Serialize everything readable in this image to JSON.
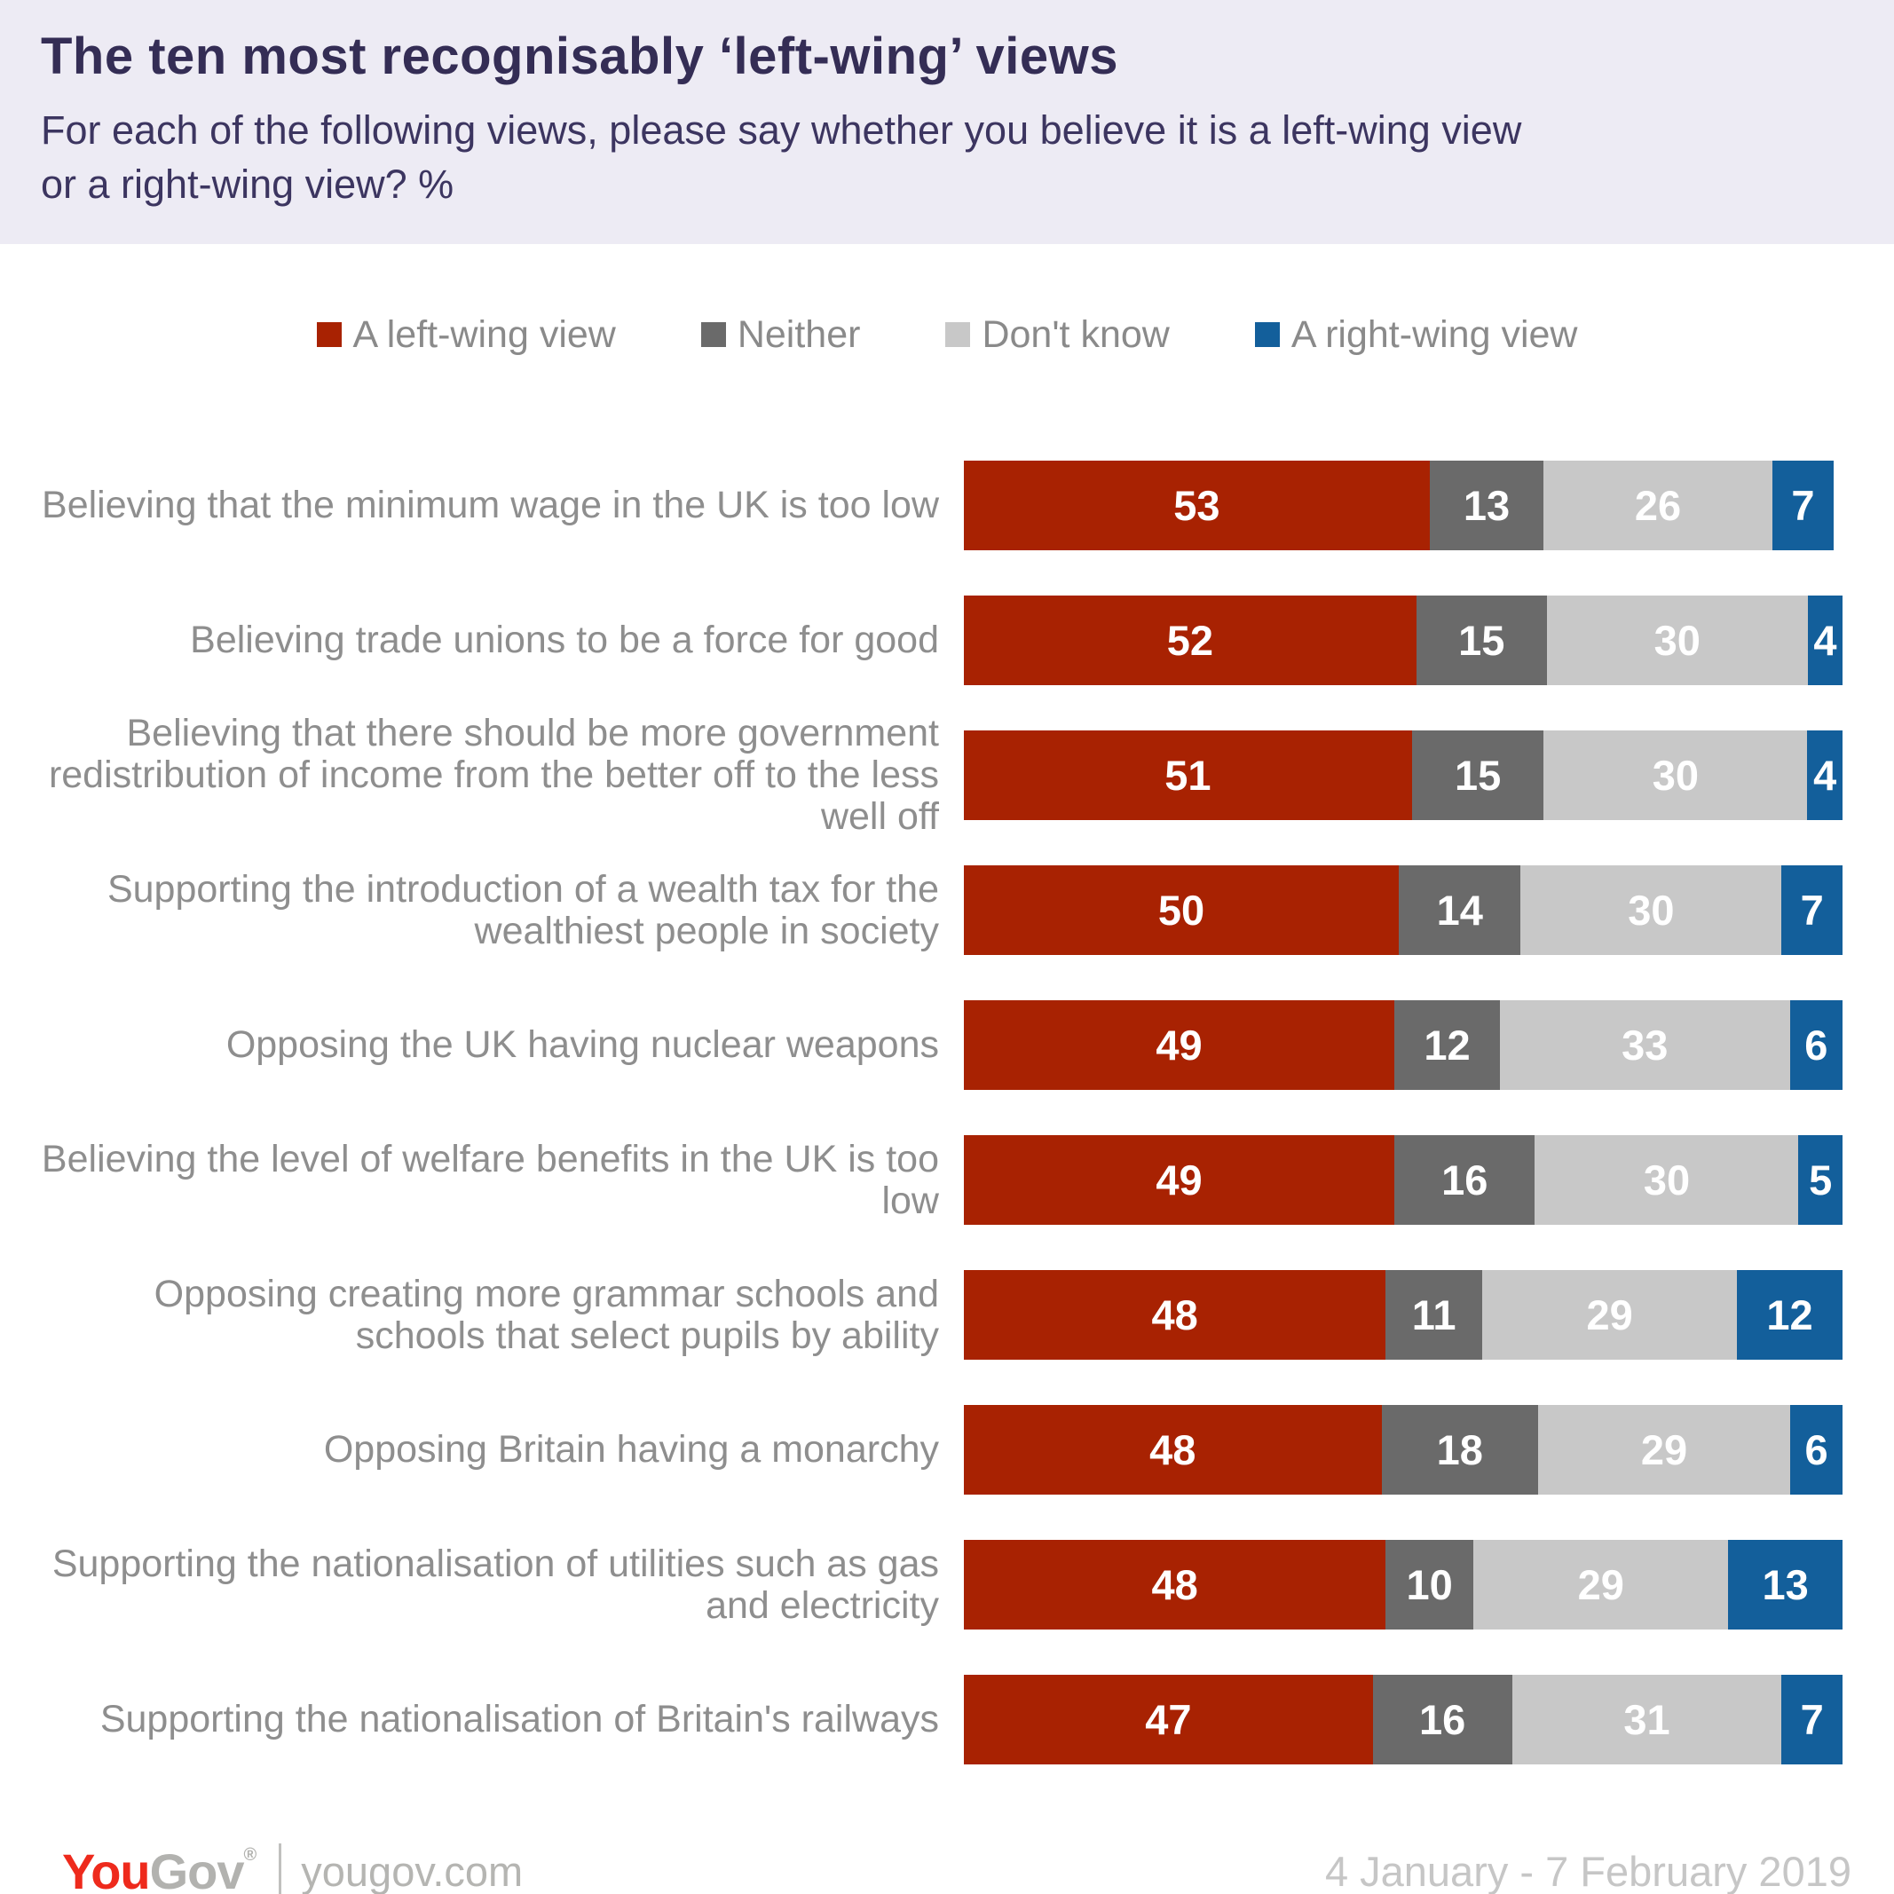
{
  "header": {
    "title": "The ten most recognisably ‘left-wing’ views",
    "subtitle_line1": "For each of the following views, please say whether you believe it is a left-wing view",
    "subtitle_line2": "or a right-wing view? %"
  },
  "legend": {
    "items": [
      {
        "key": "left-wing",
        "label": "A left-wing view",
        "color": "#A82202"
      },
      {
        "key": "neither",
        "label": "Neither",
        "color": "#6A6A6A"
      },
      {
        "key": "dont-know",
        "label": "Don't know",
        "color": "#C8C8C8"
      },
      {
        "key": "right-wing",
        "label": "A right-wing view",
        "color": "#135F9B"
      }
    ]
  },
  "chart_data": {
    "type": "bar",
    "stacked": true,
    "orientation": "horizontal",
    "value_unit": "%",
    "xlim": [
      0,
      100
    ],
    "grid": false,
    "legend_position": "top",
    "categories": [
      "Believing that the minimum wage in the UK is too low",
      "Believing trade unions to be a force for good",
      "Believing that there should be more government redistribution of income from the better off to the less well off",
      "Supporting the introduction of a wealth tax for the wealthiest people in society",
      "Opposing the UK having nuclear weapons",
      "Believing the level of welfare benefits in the UK is too low",
      "Opposing creating more grammar schools and schools that select pupils by ability",
      "Opposing Britain having a monarchy",
      "Supporting the nationalisation of utilities such as gas and electricity",
      "Supporting the nationalisation of Britain's railways"
    ],
    "series": [
      {
        "key": "left-wing",
        "name": "A left-wing view",
        "color": "#A82202",
        "values": [
          53,
          52,
          51,
          50,
          49,
          49,
          48,
          48,
          48,
          47
        ]
      },
      {
        "key": "neither",
        "name": "Neither",
        "color": "#6A6A6A",
        "values": [
          13,
          15,
          15,
          14,
          12,
          16,
          11,
          18,
          10,
          16
        ]
      },
      {
        "key": "dont-know",
        "name": "Don't know",
        "color": "#C8C8C8",
        "values": [
          26,
          30,
          30,
          30,
          33,
          30,
          29,
          29,
          29,
          31
        ]
      },
      {
        "key": "right-wing",
        "name": "A right-wing view",
        "color": "#135F9B",
        "values": [
          7,
          4,
          4,
          7,
          6,
          5,
          12,
          6,
          13,
          7
        ]
      }
    ]
  },
  "footer": {
    "logo_you": "You",
    "logo_gov": "Gov",
    "logo_reg": "®",
    "site": "yougov.com",
    "date_range": "4 January - 7 February 2019"
  }
}
